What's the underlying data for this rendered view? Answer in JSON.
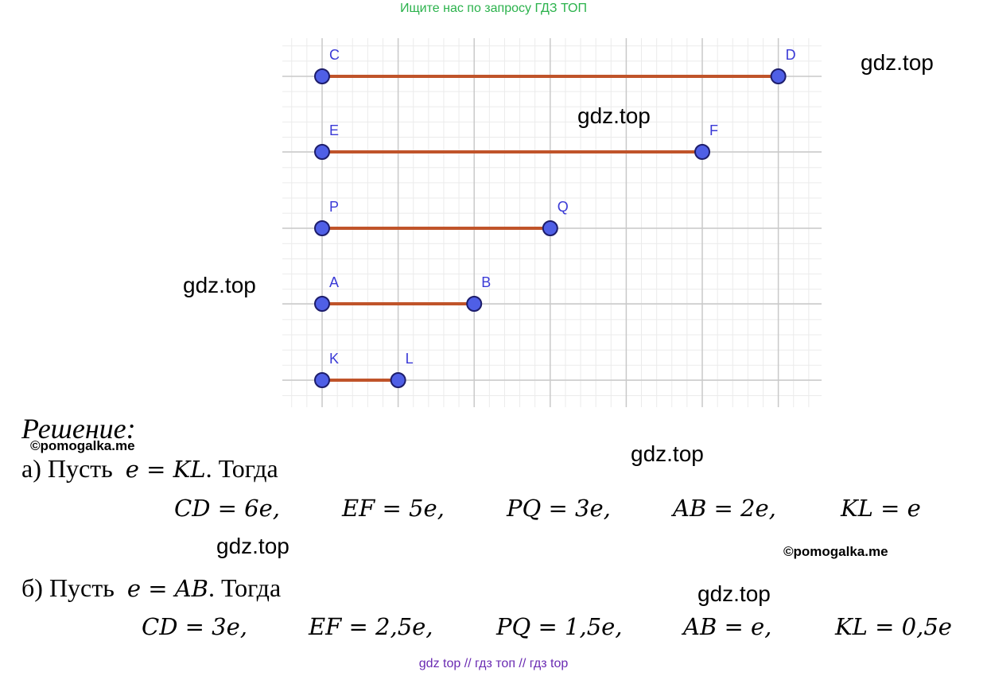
{
  "header": {
    "search_hint": "Ищите нас по запросу ГДЗ ТОП"
  },
  "figure": {
    "segments": [
      {
        "start_label": "C",
        "end_label": "D",
        "length_units": 6
      },
      {
        "start_label": "E",
        "end_label": "F",
        "length_units": 5
      },
      {
        "start_label": "P",
        "end_label": "Q",
        "length_units": 3
      },
      {
        "start_label": "A",
        "end_label": "B",
        "length_units": 2
      },
      {
        "start_label": "K",
        "end_label": "L",
        "length_units": 1
      }
    ],
    "colors": {
      "segment": "#c0542a",
      "point": "#4f5fe6",
      "point_outline": "#1d1d6b",
      "label": "#3a3ad6",
      "grid_major": "#c9c9c9",
      "grid_minor": "#ebebeb"
    }
  },
  "watermarks": {
    "gdz1": "gdz.top",
    "gdz2": "gdz.top",
    "gdz3": "gdz.top",
    "gdz4": "gdz.top",
    "gdz5": "gdz.top",
    "gdz6": "gdz.top",
    "copy1": "©pomogalka.me",
    "copy2": "©pomogalka.me"
  },
  "solution": {
    "heading": "Решение:",
    "part_a": {
      "intro_prefix": "а) Пусть",
      "intro_math": "e = KL",
      "intro_suffix": ". Тогда",
      "results": [
        "CD = 6e,",
        "EF = 5e,",
        "PQ = 3e,",
        "AB = 2e,",
        "KL = e"
      ]
    },
    "part_b": {
      "intro_prefix": "б) Пусть",
      "intro_math": "e = AB",
      "intro_suffix": ". Тогда",
      "results": [
        "CD = 3e,",
        "EF = 2,5e,",
        "PQ = 1,5e,",
        "AB = e,",
        "KL = 0,5e"
      ]
    }
  },
  "footer": {
    "links": "gdz top  //  гдз топ  //  гдз top"
  }
}
